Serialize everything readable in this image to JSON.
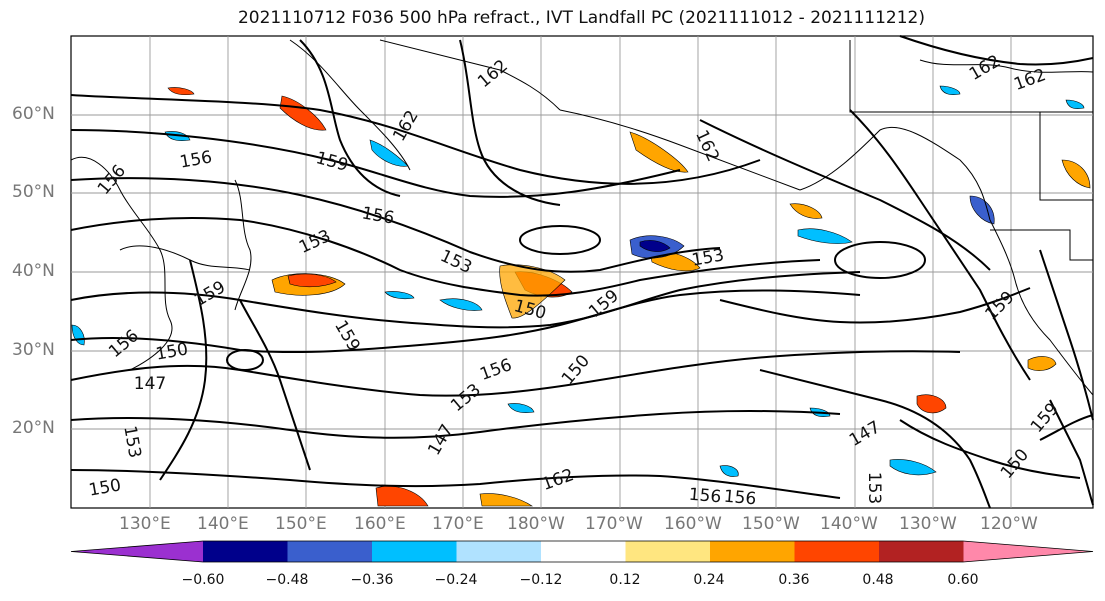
{
  "title": "2021110712 F036 500 hPa refract., IVT Landfall PC (2021111012 - 2021111212)",
  "lat_labels": [
    "60°N",
    "50°N",
    "40°N",
    "30°N",
    "20°N"
  ],
  "lon_labels": [
    "130°E",
    "140°E",
    "150°E",
    "160°E",
    "170°E",
    "180°W",
    "170°W",
    "160°W",
    "150°W",
    "140°W",
    "130°W",
    "120°W"
  ],
  "colorbar": {
    "ticks": [
      "−0.60",
      "−0.48",
      "−0.36",
      "−0.24",
      "−0.12",
      "0.12",
      "0.24",
      "0.36",
      "0.48",
      "0.60"
    ],
    "colors": [
      "#9b30d0",
      "#00008b",
      "#3a5fcd",
      "#00bfff",
      "#b0e2ff",
      "#ffffff",
      "#ffe680",
      "#ffa500",
      "#ff4500",
      "#b22222",
      "#ff88aa"
    ]
  },
  "contour_labels": [
    "162",
    "162",
    "162",
    "162",
    "162",
    "162",
    "159",
    "159",
    "159",
    "159",
    "159",
    "159",
    "156",
    "156",
    "156",
    "156",
    "156",
    "156",
    "153",
    "153",
    "153",
    "153",
    "150",
    "150",
    "150",
    "150",
    "150",
    "147",
    "147",
    "147",
    "153",
    "153",
    "156"
  ]
}
